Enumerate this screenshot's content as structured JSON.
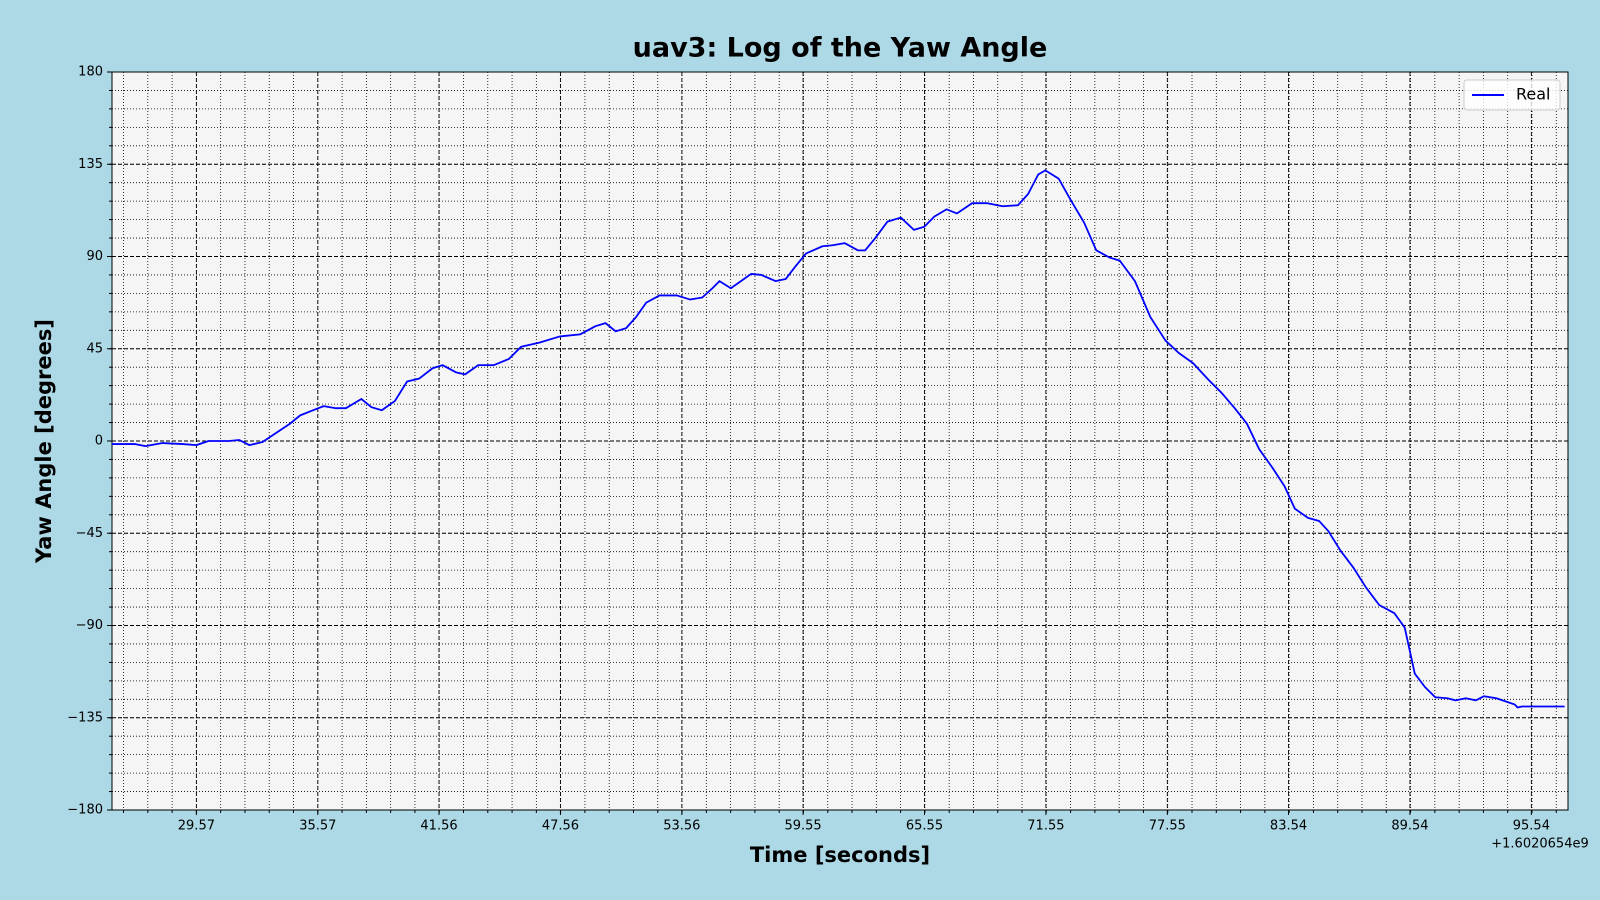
{
  "chart_data": {
    "type": "line",
    "title": "uav3: Log of the Yaw Angle",
    "x_label": "Time [seconds]",
    "y_label": "Yaw Angle [degrees]",
    "x_offset_label": "+1.6020654e9",
    "x": [
      25.4,
      26.55,
      27.05,
      27.9,
      28.9,
      29.57,
      30.17,
      31.18,
      31.68,
      32.19,
      32.84,
      33.44,
      34.2,
      34.7,
      35.2,
      35.86,
      36.46,
      36.96,
      37.72,
      38.22,
      38.73,
      39.38,
      39.98,
      40.59,
      41.24,
      41.74,
      42.4,
      42.85,
      43.5,
      44.26,
      45.01,
      45.62,
      46.52,
      47.53,
      48.53,
      49.29,
      49.79,
      50.29,
      50.8,
      51.3,
      51.8,
      52.46,
      53.31,
      53.97,
      54.57,
      55.07,
      55.42,
      55.98,
      56.48,
      56.98,
      57.49,
      58.19,
      58.69,
      59.2,
      59.7,
      60.51,
      61.01,
      61.61,
      62.26,
      62.62,
      63.12,
      63.72,
      64.38,
      65.03,
      65.54,
      66.04,
      66.64,
      67.15,
      67.9,
      68.66,
      69.41,
      70.17,
      70.67,
      71.17,
      71.52,
      72.18,
      72.78,
      73.44,
      74.04,
      74.69,
      75.2,
      75.95,
      76.71,
      77.46,
      78.11,
      78.82,
      79.57,
      80.23,
      80.88,
      81.48,
      82.09,
      82.74,
      83.34,
      83.85,
      84.5,
      85.05,
      85.51,
      86.11,
      86.76,
      87.37,
      88.02,
      88.77,
      89.28,
      89.78,
      90.28,
      90.79,
      91.39,
      91.79,
      92.3,
      92.8,
      93.2,
      93.81,
      94.41,
      94.71,
      94.86,
      95.07,
      97.18
    ],
    "series": [
      {
        "name": "Real",
        "color": "#0000ff",
        "values": [
          -1.5,
          -1.5,
          -2.5,
          -1,
          -1.5,
          -2,
          0,
          0,
          0.5,
          -2,
          -0.5,
          3.5,
          8.5,
          12.5,
          14.5,
          17,
          16,
          16,
          20.5,
          16.5,
          15,
          19.5,
          29,
          30.5,
          35.5,
          37,
          33.5,
          32.5,
          37,
          37,
          40,
          46,
          48,
          51,
          52,
          56,
          57.5,
          53.5,
          55,
          60.5,
          67.5,
          71,
          71,
          69,
          70,
          74.5,
          78,
          74.5,
          78,
          81.5,
          81,
          78,
          79,
          85.5,
          91.5,
          95,
          95.5,
          96.5,
          93,
          93,
          99,
          107,
          109,
          103,
          104.5,
          109.5,
          113,
          111,
          116,
          116,
          114.5,
          115,
          120.5,
          130,
          132,
          128,
          117.5,
          106.5,
          93,
          89.5,
          88,
          78,
          60.5,
          49,
          43,
          38,
          30,
          23.5,
          16,
          8.5,
          -4,
          -13,
          -22,
          -33,
          -37.5,
          -39,
          -44,
          -53.5,
          -62,
          -71.5,
          -80,
          -84,
          -91,
          -113.5,
          -120,
          -125,
          -125.5,
          -126.5,
          -125.5,
          -126.5,
          -124.5,
          -125.5,
          -127.5,
          -128.5,
          -130,
          -129.5,
          -129.5
        ]
      }
    ],
    "xlim": [
      25.4,
      97.35
    ],
    "xticks": [
      29.57,
      35.57,
      41.56,
      47.56,
      53.56,
      59.55,
      65.55,
      71.55,
      77.55,
      83.54,
      89.54,
      95.54
    ],
    "ylim": [
      -180,
      180
    ],
    "yticks": [
      {
        "value": -180,
        "label": "−180"
      },
      {
        "value": -135,
        "label": "−135"
      },
      {
        "value": -90,
        "label": "−90"
      },
      {
        "value": -45,
        "label": "−45"
      },
      0,
      45,
      90,
      135,
      180
    ],
    "grid": true,
    "minor_grid": {
      "x": 5,
      "y": 5
    },
    "legend": "upper right"
  }
}
